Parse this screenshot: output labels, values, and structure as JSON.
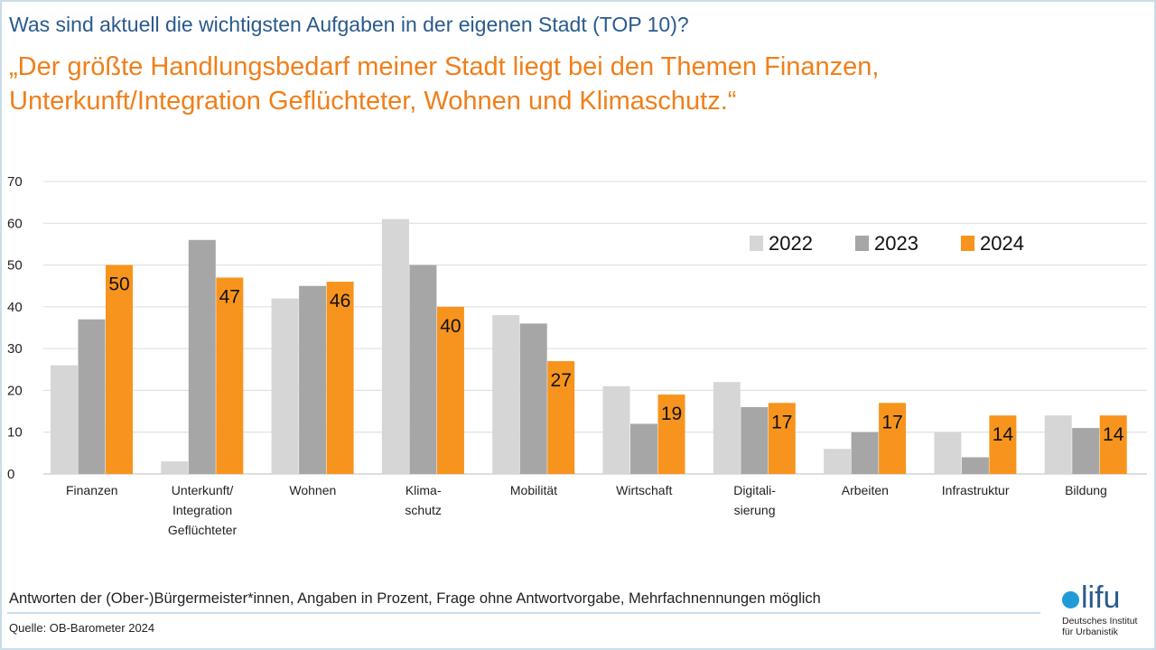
{
  "header": {
    "question": "Was sind aktuell die wichtigsten Aufgaben in der eigenen Stadt (TOP 10)?",
    "quote_line1": "„Der größte Handlungsbedarf meiner Stadt liegt bei den Themen Finanzen,",
    "quote_line2": "Unterkunft/Integration Geflüchteter, Wohnen und Klimaschutz.“"
  },
  "footer": {
    "note": "Antworten der (Ober-)Bürgermeister*innen, Angaben in Prozent, Frage ohne Antwortvorgabe, Mehrfachnennungen möglich",
    "source": "Quelle: OB-Barometer 2024"
  },
  "logo": {
    "mark": "lifu",
    "subtitle_line1": "Deutsches Institut",
    "subtitle_line2": "für Urbanistik"
  },
  "colors": {
    "2022": "#d6d6d6",
    "2023": "#a6a6a6",
    "2024": "#f7941d",
    "accent_title": "#2a5a8c",
    "accent_quote": "#f07f1a"
  },
  "chart_data": {
    "type": "bar",
    "categories": [
      [
        "Finanzen"
      ],
      [
        "Unterkunft/",
        "Integration",
        "Geflüchteter"
      ],
      [
        "Wohnen"
      ],
      [
        "Klima-",
        "schutz"
      ],
      [
        "Mobilität"
      ],
      [
        "Wirtschaft"
      ],
      [
        "Digitali-",
        "sierung"
      ],
      [
        "Arbeiten"
      ],
      [
        "Infrastruktur"
      ],
      [
        "Bildung"
      ]
    ],
    "series": [
      {
        "name": "2022",
        "values": [
          26,
          3,
          42,
          61,
          38,
          21,
          22,
          6,
          10,
          14
        ]
      },
      {
        "name": "2023",
        "values": [
          37,
          56,
          45,
          50,
          36,
          12,
          16,
          10,
          4,
          11
        ]
      },
      {
        "name": "2024",
        "values": [
          50,
          47,
          46,
          40,
          27,
          19,
          17,
          17,
          14,
          14
        ],
        "labeled": true
      }
    ],
    "ylim": [
      0,
      70
    ],
    "yticks": [
      0,
      10,
      20,
      30,
      40,
      50,
      60,
      70
    ],
    "grid": true,
    "legend": "top-right"
  }
}
